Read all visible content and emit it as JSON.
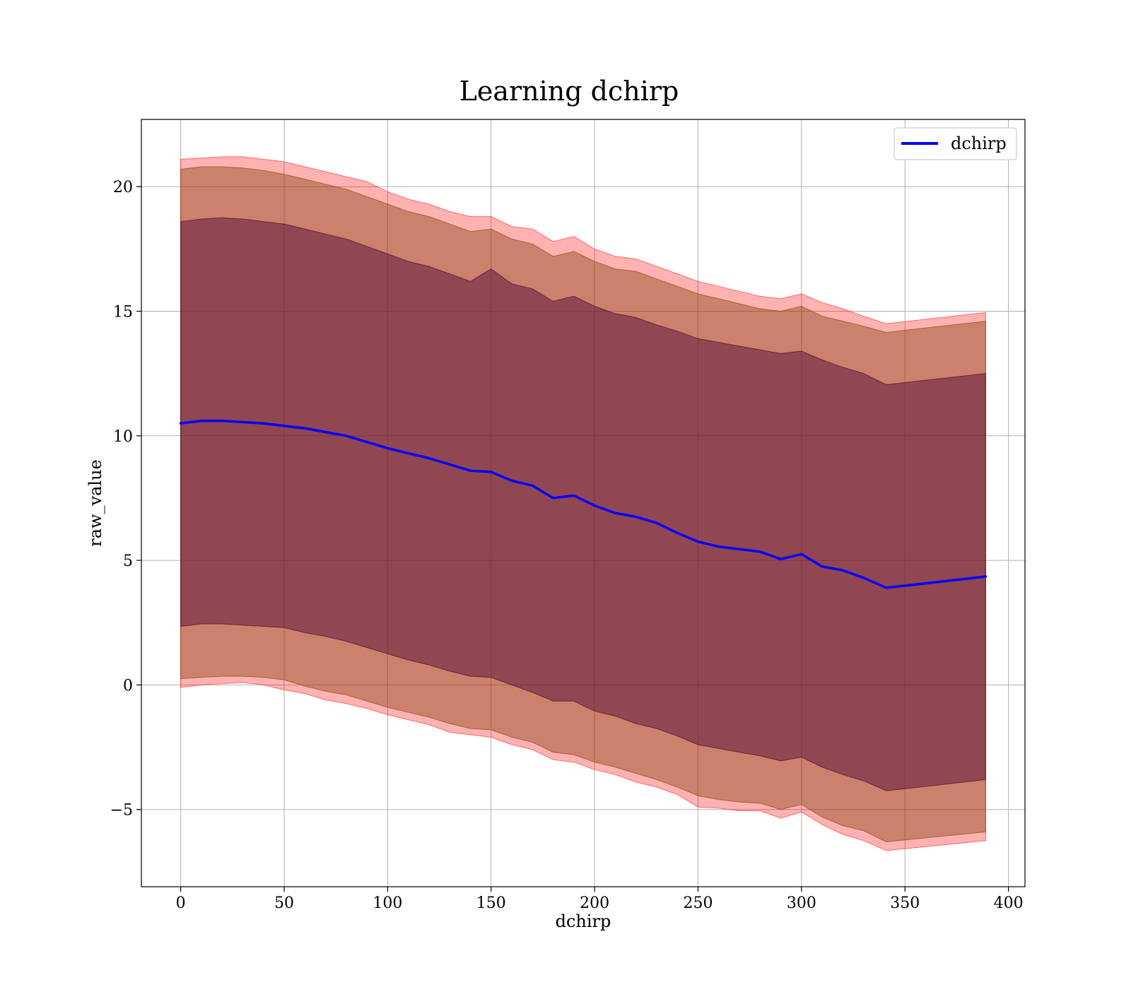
{
  "chart_data": {
    "type": "line",
    "title": "Learning dchirp",
    "xlabel": "dchirp",
    "ylabel": "raw_value",
    "xlim": [
      -19,
      408
    ],
    "ylim": [
      -8.1,
      22.7
    ],
    "xticks": [
      0,
      50,
      100,
      150,
      200,
      250,
      300,
      350,
      400
    ],
    "yticks": [
      -5,
      0,
      5,
      10,
      15,
      20
    ],
    "ytick_labels": [
      "−5",
      "0",
      "5",
      "10",
      "15",
      "20"
    ],
    "grid": true,
    "legend_position": "upper right",
    "x": [
      0,
      10,
      20,
      30,
      40,
      50,
      60,
      70,
      80,
      90,
      100,
      110,
      120,
      130,
      140,
      150,
      160,
      170,
      180,
      190,
      200,
      210,
      220,
      230,
      240,
      250,
      260,
      270,
      280,
      290,
      300,
      310,
      320,
      330,
      341,
      389
    ],
    "series": [
      {
        "name": "dchirp",
        "color": "#0000ff",
        "values": [
          10.5,
          10.6,
          10.6,
          10.55,
          10.5,
          10.4,
          10.3,
          10.15,
          10.0,
          9.75,
          9.5,
          9.3,
          9.1,
          8.85,
          8.6,
          8.55,
          8.2,
          8.0,
          7.5,
          7.6,
          7.2,
          6.9,
          6.75,
          6.5,
          6.1,
          5.75,
          5.55,
          5.45,
          5.35,
          5.05,
          5.25,
          4.75,
          4.6,
          4.3,
          3.9,
          4.35
        ]
      }
    ],
    "bands": [
      {
        "color": "#ff0000",
        "opacity": 0.3,
        "upper": [
          21.1,
          21.15,
          21.2,
          21.2,
          21.1,
          21.0,
          20.8,
          20.6,
          20.4,
          20.2,
          19.8,
          19.5,
          19.3,
          19.0,
          18.8,
          18.8,
          18.4,
          18.3,
          17.8,
          18.0,
          17.5,
          17.2,
          17.1,
          16.8,
          16.5,
          16.2,
          16.0,
          15.8,
          15.6,
          15.5,
          15.7,
          15.35,
          15.1,
          14.8,
          14.5,
          14.95
        ],
        "lower": [
          -0.1,
          0.0,
          0.05,
          0.1,
          0.0,
          -0.2,
          -0.35,
          -0.6,
          -0.75,
          -0.95,
          -1.2,
          -1.4,
          -1.6,
          -1.9,
          -2.0,
          -2.1,
          -2.4,
          -2.6,
          -3.0,
          -3.1,
          -3.4,
          -3.6,
          -3.9,
          -4.1,
          -4.4,
          -4.9,
          -4.95,
          -5.05,
          -5.05,
          -5.35,
          -5.1,
          -5.6,
          -6.0,
          -6.25,
          -6.65,
          -6.25
        ]
      },
      {
        "color": "#8b4513",
        "opacity": 0.45,
        "upper": [
          20.7,
          20.8,
          20.8,
          20.75,
          20.65,
          20.5,
          20.3,
          20.1,
          19.9,
          19.6,
          19.3,
          19.0,
          18.8,
          18.5,
          18.2,
          18.3,
          17.9,
          17.7,
          17.2,
          17.4,
          17.0,
          16.7,
          16.6,
          16.3,
          16.0,
          15.7,
          15.5,
          15.3,
          15.1,
          15.0,
          15.2,
          14.8,
          14.6,
          14.4,
          14.15,
          14.6
        ],
        "lower": [
          0.25,
          0.3,
          0.35,
          0.35,
          0.3,
          0.2,
          -0.05,
          -0.25,
          -0.4,
          -0.65,
          -0.9,
          -1.1,
          -1.3,
          -1.55,
          -1.75,
          -1.8,
          -2.1,
          -2.3,
          -2.7,
          -2.8,
          -3.1,
          -3.3,
          -3.55,
          -3.8,
          -4.1,
          -4.45,
          -4.6,
          -4.7,
          -4.75,
          -5.0,
          -4.8,
          -5.3,
          -5.65,
          -5.85,
          -6.3,
          -5.9
        ]
      },
      {
        "color": "#4b0033",
        "opacity": 0.45,
        "upper": [
          18.6,
          18.7,
          18.75,
          18.7,
          18.6,
          18.5,
          18.3,
          18.1,
          17.9,
          17.6,
          17.3,
          17.0,
          16.8,
          16.5,
          16.2,
          16.7,
          16.1,
          15.9,
          15.4,
          15.6,
          15.2,
          14.9,
          14.75,
          14.45,
          14.2,
          13.9,
          13.75,
          13.6,
          13.45,
          13.3,
          13.4,
          13.05,
          12.75,
          12.5,
          12.05,
          12.5
        ],
        "lower": [
          2.35,
          2.45,
          2.45,
          2.4,
          2.35,
          2.3,
          2.1,
          1.95,
          1.75,
          1.5,
          1.25,
          1.0,
          0.8,
          0.55,
          0.35,
          0.3,
          0.0,
          -0.3,
          -0.65,
          -0.65,
          -1.05,
          -1.25,
          -1.55,
          -1.75,
          -2.05,
          -2.4,
          -2.55,
          -2.7,
          -2.85,
          -3.05,
          -2.9,
          -3.3,
          -3.6,
          -3.85,
          -4.25,
          -3.8
        ]
      }
    ]
  }
}
